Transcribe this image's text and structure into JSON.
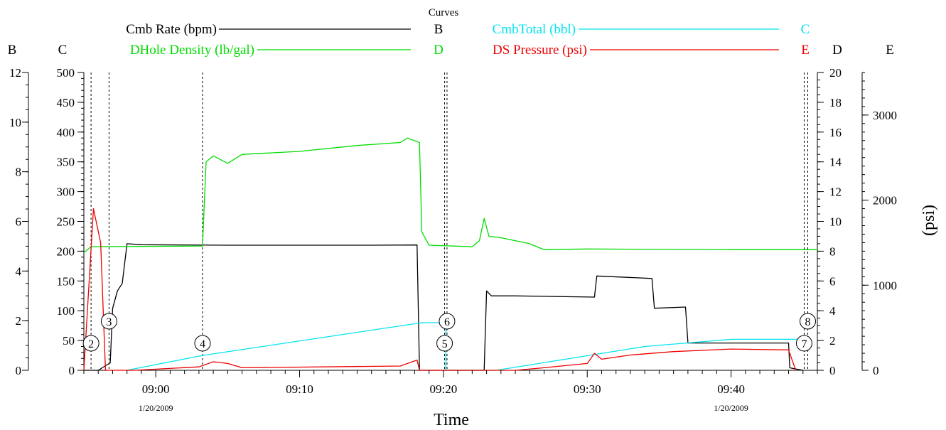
{
  "legend": {
    "title": "Curves",
    "entries": [
      {
        "name": "Cmb Rate (bpm)",
        "axis": "B",
        "color": "#000000"
      },
      {
        "name": "CmbTotal  (bbl)",
        "axis": "C",
        "color": "#00e5ee"
      },
      {
        "name": "DHole Density (lb/gal)",
        "axis": "D",
        "color": "#00dd00"
      },
      {
        "name": "DS Pressure (psi)",
        "axis": "E",
        "color": "#ee0000"
      }
    ]
  },
  "chart_data": {
    "type": "line",
    "xlabel": "Time",
    "x_ticks": [
      {
        "time": "09:00",
        "date": "1/20/2009"
      },
      {
        "time": "09:10",
        "date": ""
      },
      {
        "time": "09:20",
        "date": ""
      },
      {
        "time": "09:30",
        "date": ""
      },
      {
        "time": "09:40",
        "date": "1/20/2009"
      }
    ],
    "xlim": [
      "08:55",
      "09:46"
    ],
    "axes": {
      "B": {
        "label": "B",
        "ylim": [
          0,
          12
        ],
        "ticks": [
          0,
          2,
          4,
          6,
          8,
          10,
          12
        ]
      },
      "C": {
        "label": "C",
        "ylim": [
          0,
          500
        ],
        "ticks": [
          0,
          50,
          100,
          150,
          200,
          250,
          300,
          350,
          400,
          450,
          500
        ]
      },
      "D": {
        "label": "D",
        "ylim": [
          0,
          20
        ],
        "ticks": [
          0,
          2,
          4,
          6,
          8,
          10,
          12,
          14,
          16,
          18,
          20
        ]
      },
      "E": {
        "label": "E",
        "ylim": [
          0,
          3500
        ],
        "ticks": [
          0,
          1000,
          2000,
          3000
        ],
        "unit_label": "(psi)"
      }
    },
    "events": [
      {
        "label": "2",
        "time": "08:55:30"
      },
      {
        "label": "3",
        "time": "08:56:45"
      },
      {
        "label": "4",
        "time": "09:03:15"
      },
      {
        "label": "5",
        "time": "09:20:05"
      },
      {
        "label": "6",
        "time": "09:20:15"
      },
      {
        "label": "7",
        "time": "09:45:05"
      },
      {
        "label": "8",
        "time": "09:45:20"
      }
    ],
    "series": [
      {
        "name": "Cmb Rate (bpm)",
        "axis": "B",
        "color": "#000000",
        "points": [
          [
            "08:55:00",
            0
          ],
          [
            "08:56:00",
            0
          ],
          [
            "08:56:50",
            0.3
          ],
          [
            "08:57:00",
            2.5
          ],
          [
            "08:57:20",
            3.2
          ],
          [
            "08:57:40",
            3.5
          ],
          [
            "08:58:00",
            5.1
          ],
          [
            "08:59:00",
            5.06
          ],
          [
            "09:05:00",
            5.04
          ],
          [
            "09:15:00",
            5.04
          ],
          [
            "09:18:10",
            5.05
          ],
          [
            "09:18:20",
            0
          ],
          [
            "09:22:50",
            0
          ],
          [
            "09:23:00",
            3.2
          ],
          [
            "09:23:20",
            3.0
          ],
          [
            "09:23:30",
            3.0
          ],
          [
            "09:25:00",
            3.0
          ],
          [
            "09:30:30",
            2.95
          ],
          [
            "09:30:40",
            3.8
          ],
          [
            "09:34:30",
            3.7
          ],
          [
            "09:34:40",
            2.5
          ],
          [
            "09:36:50",
            2.55
          ],
          [
            "09:37:00",
            1.1
          ],
          [
            "09:44:00",
            1.1
          ],
          [
            "09:44:05",
            0.1
          ],
          [
            "09:45:00",
            0
          ]
        ]
      },
      {
        "name": "CmbTotal  (bbl)",
        "axis": "C",
        "color": "#00e5ee",
        "points": [
          [
            "08:58:00",
            0
          ],
          [
            "09:03:15",
            25
          ],
          [
            "09:18:30",
            80
          ],
          [
            "09:20:10",
            80
          ],
          [
            "09:20:10",
            0
          ],
          [
            "09:23:40",
            0
          ],
          [
            "09:34:00",
            40
          ],
          [
            "09:40:00",
            52
          ],
          [
            "09:45:10",
            52
          ]
        ]
      },
      {
        "name": "DHole Density (lb/gal)",
        "axis": "D",
        "color": "#00dd00",
        "points": [
          [
            "08:55:00",
            7.9
          ],
          [
            "08:55:30",
            8.3
          ],
          [
            "09:03:15",
            8.35
          ],
          [
            "09:03:30",
            14.0
          ],
          [
            "09:04:00",
            14.4
          ],
          [
            "09:05:00",
            13.9
          ],
          [
            "09:06:00",
            14.5
          ],
          [
            "09:10:00",
            14.7
          ],
          [
            "09:14:00",
            15.1
          ],
          [
            "09:17:00",
            15.3
          ],
          [
            "09:17:30",
            15.6
          ],
          [
            "09:18:20",
            15.3
          ],
          [
            "09:18:30",
            9.3
          ],
          [
            "09:19:00",
            8.4
          ],
          [
            "09:22:00",
            8.3
          ],
          [
            "09:22:30",
            8.7
          ],
          [
            "09:22:50",
            10.2
          ],
          [
            "09:23:10",
            9.0
          ],
          [
            "09:24:00",
            8.9
          ],
          [
            "09:26:00",
            8.5
          ],
          [
            "09:27:00",
            8.1
          ],
          [
            "09:30:00",
            8.15
          ],
          [
            "09:40:00",
            8.1
          ],
          [
            "09:46:00",
            8.1
          ]
        ]
      },
      {
        "name": "DS Pressure (psi)",
        "axis": "E",
        "color": "#ee0000",
        "points": [
          [
            "08:55:00",
            0
          ],
          [
            "08:55:40",
            1900
          ],
          [
            "08:56:10",
            1500
          ],
          [
            "08:56:30",
            0
          ],
          [
            "08:58:30",
            0
          ],
          [
            "09:03:00",
            40
          ],
          [
            "09:04:00",
            100
          ],
          [
            "09:05:00",
            80
          ],
          [
            "09:06:00",
            30
          ],
          [
            "09:17:00",
            50
          ],
          [
            "09:18:10",
            120
          ],
          [
            "09:18:20",
            0
          ],
          [
            "09:25:00",
            0
          ],
          [
            "09:27:00",
            30
          ],
          [
            "09:30:00",
            80
          ],
          [
            "09:30:30",
            200
          ],
          [
            "09:31:00",
            130
          ],
          [
            "09:33:00",
            180
          ],
          [
            "09:36:00",
            220
          ],
          [
            "09:40:00",
            250
          ],
          [
            "09:44:00",
            240
          ],
          [
            "09:44:30",
            0
          ]
        ]
      }
    ]
  }
}
